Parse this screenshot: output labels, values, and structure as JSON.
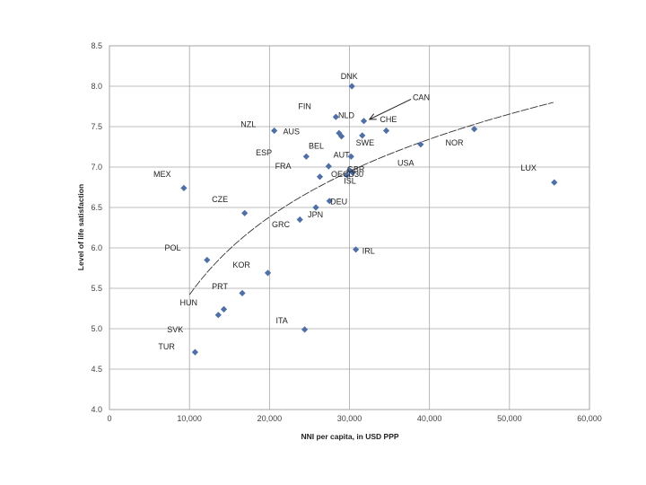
{
  "chart_data": {
    "type": "scatter",
    "title": "",
    "xlabel": "NNI per capita, in USD PPP",
    "ylabel": "Level of life satisfaction",
    "xlim": [
      0,
      60000
    ],
    "ylim": [
      4.0,
      8.5
    ],
    "xticks": [
      0,
      10000,
      20000,
      30000,
      40000,
      50000,
      60000
    ],
    "xtick_labels": [
      "0",
      "10,000",
      "20,000",
      "30,000",
      "40,000",
      "50,000",
      "60,000"
    ],
    "yticks": [
      4.0,
      4.5,
      5.0,
      5.5,
      6.0,
      6.5,
      7.0,
      7.5,
      8.0,
      8.5
    ],
    "ytick_labels": [
      "4.0",
      "4.5",
      "5.0",
      "5.5",
      "6.0",
      "6.5",
      "7.0",
      "7.5",
      "8.0",
      "8.5"
    ],
    "grid": true,
    "marker_color": "#4F6FA6",
    "trendline": {
      "type": "logarithmic",
      "x_range": [
        10000,
        55500
      ],
      "y_start": 5.42,
      "y_end": 7.8
    },
    "points": [
      {
        "label": "DNK",
        "x": 30300,
        "y": 8.0
      },
      {
        "label": "CAN",
        "x": 31800,
        "y": 7.57
      },
      {
        "label": "FIN",
        "x": 28300,
        "y": 7.62
      },
      {
        "label": "NLD",
        "x": 28700,
        "y": 7.42
      },
      {
        "label": "NZL",
        "x": 20600,
        "y": 7.45
      },
      {
        "label": "AUS",
        "x": 29000,
        "y": 7.38
      },
      {
        "label": "CHE",
        "x": 34600,
        "y": 7.45
      },
      {
        "label": "SWE",
        "x": 31600,
        "y": 7.39
      },
      {
        "label": "NOR",
        "x": 45600,
        "y": 7.47
      },
      {
        "label": "BEL",
        "x": 24600,
        "y": 7.13
      },
      {
        "label": "ESP",
        "x": 27400,
        "y": 7.01
      },
      {
        "label": "AUT",
        "x": 30200,
        "y": 7.13
      },
      {
        "label": "USA",
        "x": 38900,
        "y": 7.28
      },
      {
        "label": "FRA",
        "x": 26300,
        "y": 6.88
      },
      {
        "label": "GBR",
        "x": 30000,
        "y": 6.96
      },
      {
        "label": "OECD30",
        "x": 29700,
        "y": 6.9
      },
      {
        "label": "ISL",
        "x": 30400,
        "y": 6.93
      },
      {
        "label": "LUX",
        "x": 55600,
        "y": 6.81
      },
      {
        "label": "MEX",
        "x": 9300,
        "y": 6.74
      },
      {
        "label": "CZE",
        "x": 16900,
        "y": 6.43
      },
      {
        "label": "DEU",
        "x": 27500,
        "y": 6.58
      },
      {
        "label": "JPN",
        "x": 25800,
        "y": 6.5
      },
      {
        "label": "GRC",
        "x": 23800,
        "y": 6.35
      },
      {
        "label": "IRL",
        "x": 30800,
        "y": 5.98
      },
      {
        "label": "POL",
        "x": 12200,
        "y": 5.85
      },
      {
        "label": "KOR",
        "x": 19800,
        "y": 5.69
      },
      {
        "label": "PRT",
        "x": 16600,
        "y": 5.44
      },
      {
        "label": "HUN",
        "x": 14300,
        "y": 5.24
      },
      {
        "label": "SVK",
        "x": 13600,
        "y": 5.17
      },
      {
        "label": "ITA",
        "x": 24400,
        "y": 4.99
      },
      {
        "label": "TUR",
        "x": 10700,
        "y": 4.71
      }
    ],
    "annotations": [
      {
        "text": "DNK",
        "x": 28900,
        "y": 8.12
      },
      {
        "text": "CAN",
        "x": 37900,
        "y": 7.86
      },
      {
        "text": "FIN",
        "x": 23600,
        "y": 7.75
      },
      {
        "text": "NLD",
        "x": 28600,
        "y": 7.64
      },
      {
        "text": "CHE",
        "x": 33800,
        "y": 7.59
      },
      {
        "text": "NZL",
        "x": 16400,
        "y": 7.53
      },
      {
        "text": "AUS",
        "x": 21700,
        "y": 7.44
      },
      {
        "text": "SWE",
        "x": 30800,
        "y": 7.3
      },
      {
        "text": "NOR",
        "x": 42000,
        "y": 7.3
      },
      {
        "text": "BEL",
        "x": 24900,
        "y": 7.26
      },
      {
        "text": "ESP",
        "x": 18300,
        "y": 7.18
      },
      {
        "text": "AUT",
        "x": 28000,
        "y": 7.15
      },
      {
        "text": "USA",
        "x": 36000,
        "y": 7.05
      },
      {
        "text": "FRA",
        "x": 20700,
        "y": 7.01
      },
      {
        "text": "LUX",
        "x": 51400,
        "y": 6.99
      },
      {
        "text": "GBR",
        "x": 29700,
        "y": 6.97
      },
      {
        "text": "OECD30",
        "x": 27700,
        "y": 6.91
      },
      {
        "text": "MEX",
        "x": 5500,
        "y": 6.91
      },
      {
        "text": "ISL",
        "x": 29300,
        "y": 6.83
      },
      {
        "text": "CZE",
        "x": 12800,
        "y": 6.6
      },
      {
        "text": "DEU",
        "x": 27600,
        "y": 6.57
      },
      {
        "text": "JPN",
        "x": 24800,
        "y": 6.41
      },
      {
        "text": "GRC",
        "x": 20300,
        "y": 6.29
      },
      {
        "text": "IRL",
        "x": 31600,
        "y": 5.96
      },
      {
        "text": "POL",
        "x": 6900,
        "y": 6.0
      },
      {
        "text": "KOR",
        "x": 15400,
        "y": 5.79
      },
      {
        "text": "PRT",
        "x": 12800,
        "y": 5.52
      },
      {
        "text": "HUN",
        "x": 8800,
        "y": 5.32
      },
      {
        "text": "SVK",
        "x": 7200,
        "y": 4.99
      },
      {
        "text": "ITA",
        "x": 20800,
        "y": 5.1
      },
      {
        "text": "TUR",
        "x": 6100,
        "y": 4.78
      }
    ],
    "arrow": {
      "from": {
        "x": 37700,
        "y": 7.84
      },
      "to": {
        "x": 32500,
        "y": 7.59
      }
    }
  }
}
